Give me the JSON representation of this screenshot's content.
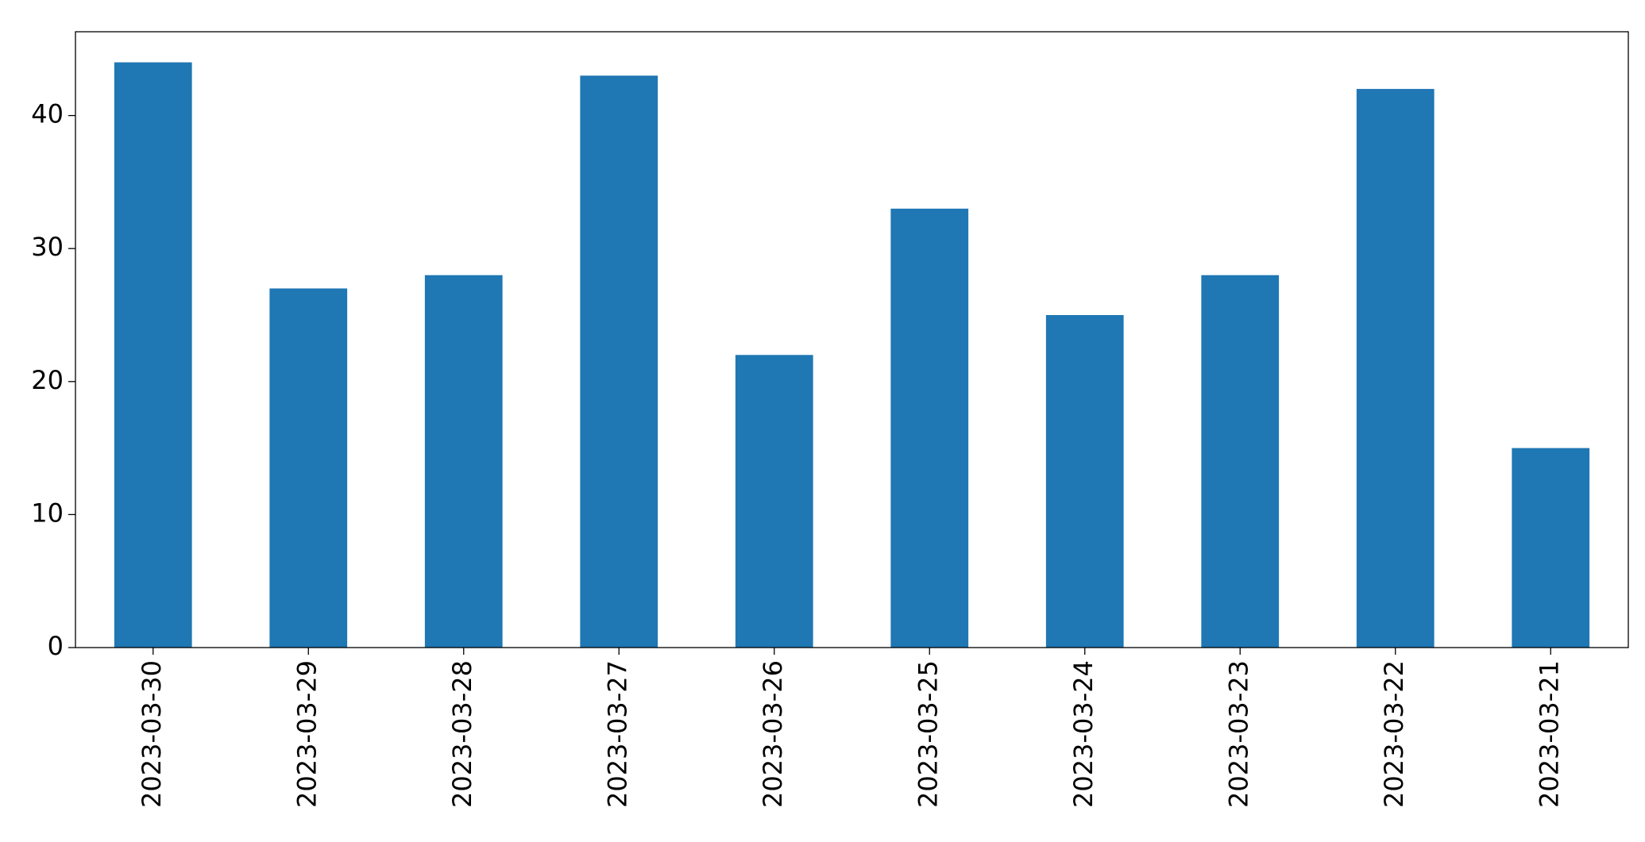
{
  "chart_data": {
    "type": "bar",
    "categories": [
      "2023-03-30",
      "2023-03-29",
      "2023-03-28",
      "2023-03-27",
      "2023-03-26",
      "2023-03-25",
      "2023-03-24",
      "2023-03-23",
      "2023-03-22",
      "2023-03-21"
    ],
    "values": [
      44,
      27,
      28,
      43,
      22,
      33,
      25,
      28,
      42,
      15
    ],
    "color": "#1f77b4",
    "ylim": [
      0,
      46.3
    ],
    "yticks": [
      0,
      10,
      20,
      30,
      40
    ],
    "grid": false
  }
}
